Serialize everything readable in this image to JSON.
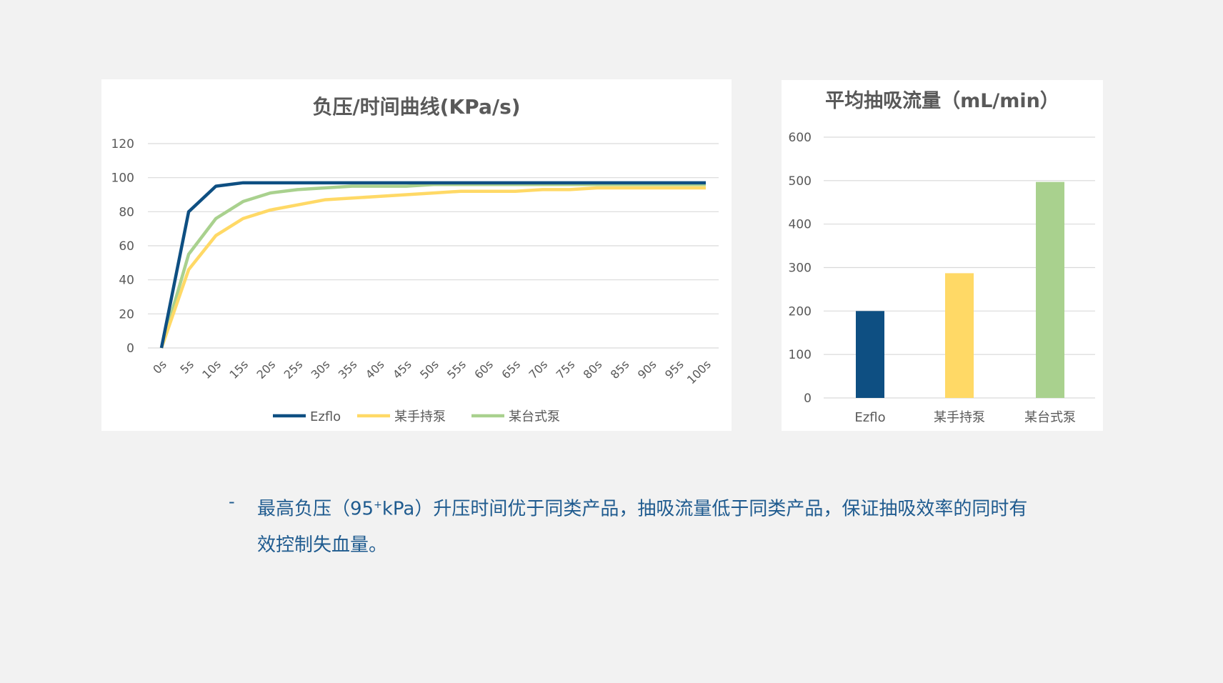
{
  "chart_data": [
    {
      "type": "line",
      "title": "负压/时间曲线(KPa/s)",
      "xlabel": "",
      "ylabel": "",
      "categories": [
        "0s",
        "5s",
        "10s",
        "15s",
        "20s",
        "25s",
        "30s",
        "35s",
        "40s",
        "45s",
        "50s",
        "55s",
        "60s",
        "65s",
        "70s",
        "75s",
        "80s",
        "85s",
        "90s",
        "95s",
        "100s"
      ],
      "ylim": [
        0,
        120
      ],
      "yticks": [
        0,
        20,
        40,
        60,
        80,
        100,
        120
      ],
      "grid": true,
      "legend": "bottom",
      "series": [
        {
          "name": "Ezflo",
          "color": "#0e4f82",
          "values": [
            0,
            80,
            95,
            97,
            97,
            97,
            97,
            97,
            97,
            97,
            97,
            97,
            97,
            97,
            97,
            97,
            97,
            97,
            97,
            97,
            97
          ]
        },
        {
          "name": "某手持泵",
          "color": "#ffd966",
          "values": [
            0,
            46,
            66,
            76,
            81,
            84,
            87,
            88,
            89,
            90,
            91,
            92,
            92,
            92,
            93,
            93,
            94,
            94,
            94,
            94,
            94
          ]
        },
        {
          "name": "某台式泵",
          "color": "#a9d18e",
          "values": [
            0,
            55,
            76,
            86,
            91,
            93,
            94,
            95,
            95,
            95,
            96,
            96,
            96,
            96,
            96,
            96,
            96,
            96,
            96,
            96,
            96
          ]
        }
      ]
    },
    {
      "type": "bar",
      "title": "平均抽吸流量（mL/min）",
      "xlabel": "",
      "ylabel": "",
      "categories": [
        "Ezflo",
        "某手持泵",
        "某台式泵"
      ],
      "values": [
        200,
        287,
        497
      ],
      "colors": [
        "#0e4f82",
        "#ffd966",
        "#a9d18e"
      ],
      "ylim": [
        0,
        600
      ],
      "yticks": [
        0,
        100,
        200,
        300,
        400,
        500,
        600
      ],
      "grid": true
    }
  ],
  "note": {
    "bullet": "-",
    "text_before": "最高负压（95",
    "superscript": "+",
    "text_after": "kPa）升压时间优于同类产品，抽吸流量低于同类产品，保证抽吸效率的同时有效控制失血量。"
  }
}
